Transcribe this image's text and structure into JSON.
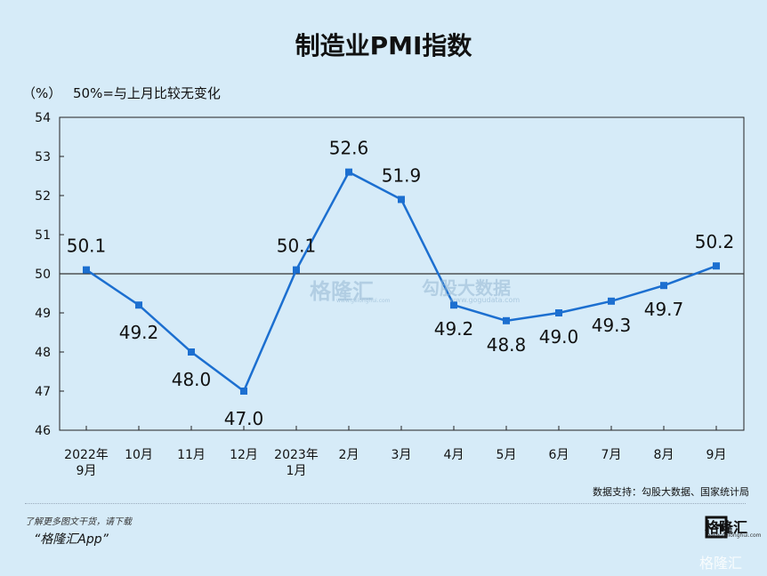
{
  "title": "制造业PMI指数",
  "unit_label": "（%）",
  "reference_note": "50%=与上月比较无变化",
  "chart_data": {
    "type": "line",
    "title": "制造业PMI指数",
    "ylabel": "（%）",
    "categories": [
      "2022年\n9月",
      "10月",
      "11月",
      "12月",
      "2023年\n1月",
      "2月",
      "3月",
      "4月",
      "5月",
      "6月",
      "7月",
      "8月",
      "9月"
    ],
    "series": [
      {
        "values": [
          50.1,
          49.2,
          48.0,
          47.0,
          50.1,
          52.6,
          51.9,
          49.2,
          48.8,
          49.0,
          49.3,
          49.7,
          50.2
        ]
      }
    ],
    "data_labels": [
      "50.1",
      "49.2",
      "48.0",
      "47.0",
      "50.1",
      "52.6",
      "51.9",
      "49.2",
      "48.8",
      "49.0",
      "49.3",
      "49.7",
      "50.2"
    ],
    "ylim": [
      46,
      54
    ],
    "yticks": [
      46,
      47,
      48,
      49,
      50,
      51,
      52,
      53,
      54
    ],
    "reference_line": 50,
    "grid": false,
    "line_color": "#1c6fd0",
    "marker": "square"
  },
  "source_text": "数据支持：勾股大数据、国家统计局",
  "promo_line1": "了解更多图文干货，请下载",
  "promo_line2": "“格隆汇App”",
  "logo_text": "格隆汇",
  "logo_sub": "www.gelonghui.com",
  "center_watermark_1": "格隆汇",
  "center_watermark_1_sub": "www.gelonghui.com",
  "center_watermark_2": "勾股大数据",
  "center_watermark_2_sub": "www.gogudata.com",
  "corner_watermark": "格隆汇"
}
